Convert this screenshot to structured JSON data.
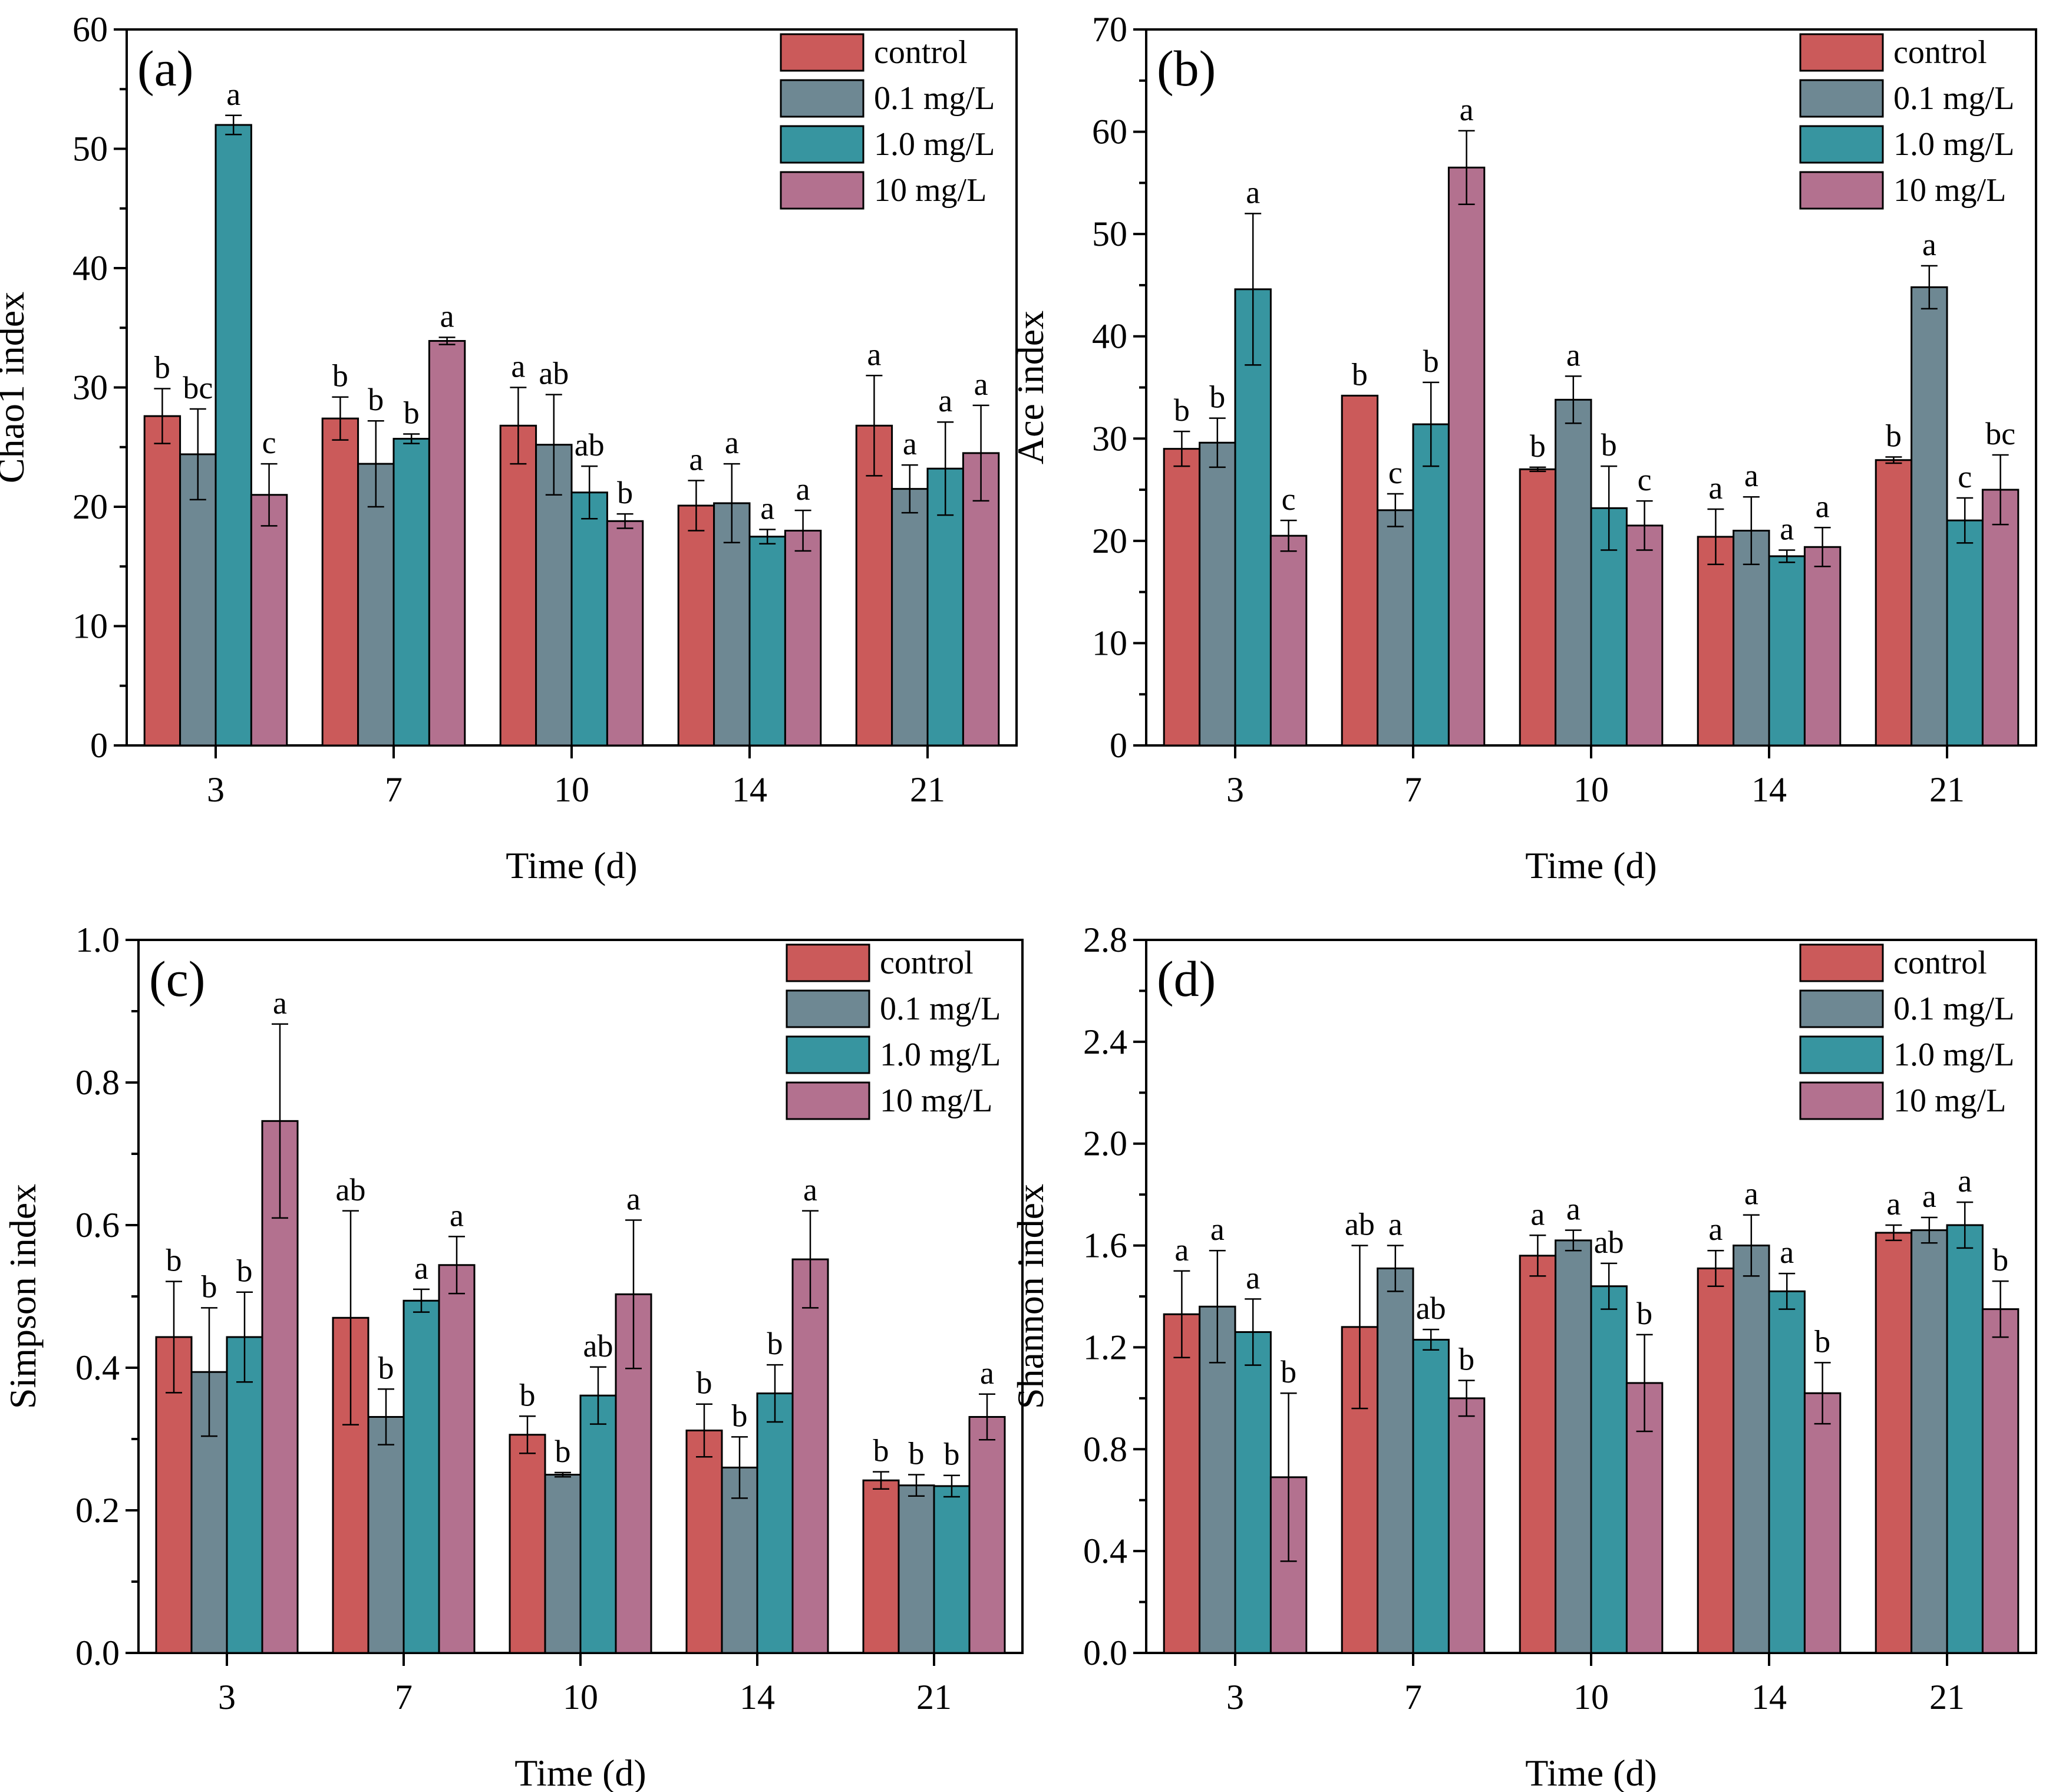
{
  "colors": {
    "control": "#CB5A5A",
    "dose_0_1": "#6E8893",
    "dose_1_0": "#3795A0",
    "dose_10": "#B3718F"
  },
  "chart_data": [
    {
      "type": "bar",
      "panel_label": "(a)",
      "xlabel": "Time (d)",
      "ylabel": "Chao1 index",
      "categories": [
        "3",
        "7",
        "10",
        "14",
        "21"
      ],
      "ylim": [
        0,
        60
      ],
      "yticks": [
        0,
        10,
        20,
        30,
        40,
        50,
        60
      ],
      "tick_decimals": 0,
      "legend_position": "top-right",
      "series": [
        {
          "name": "control",
          "values": [
            27.6,
            27.4,
            26.8,
            20.1,
            26.8
          ],
          "errors": [
            2.3,
            1.8,
            3.2,
            2.1,
            4.2
          ],
          "letters": [
            "b",
            "b",
            "a",
            "a",
            "a"
          ]
        },
        {
          "name": "0.1 mg/L",
          "values": [
            24.4,
            23.6,
            25.2,
            20.3,
            21.5
          ],
          "errors": [
            3.8,
            3.6,
            4.2,
            3.3,
            2.0
          ],
          "letters": [
            "bc",
            "b",
            "ab",
            "a",
            "a"
          ]
        },
        {
          "name": "1.0 mg/L",
          "values": [
            52.0,
            25.7,
            21.2,
            17.5,
            23.2
          ],
          "errors": [
            0.8,
            0.4,
            2.2,
            0.6,
            3.9
          ],
          "letters": [
            "a",
            "b",
            "ab",
            "a",
            "a"
          ]
        },
        {
          "name": "10 mg/L",
          "values": [
            21.0,
            33.9,
            18.8,
            18.0,
            24.5
          ],
          "errors": [
            2.6,
            0.3,
            0.6,
            1.7,
            4.0
          ],
          "letters": [
            "c",
            "a",
            "b",
            "a",
            "a"
          ]
        }
      ]
    },
    {
      "type": "bar",
      "panel_label": "(b)",
      "xlabel": "Time (d)",
      "ylabel": "Ace index",
      "categories": [
        "3",
        "7",
        "10",
        "14",
        "21"
      ],
      "ylim": [
        0,
        70
      ],
      "yticks": [
        0,
        10,
        20,
        30,
        40,
        50,
        60,
        70
      ],
      "tick_decimals": 0,
      "legend_position": "top-right",
      "series": [
        {
          "name": "control",
          "values": [
            29.0,
            34.2,
            27.0,
            20.4,
            27.9
          ],
          "errors": [
            1.7,
            0,
            0.2,
            2.7,
            0.3
          ],
          "letters": [
            "b",
            "b",
            "b",
            "a",
            "b"
          ]
        },
        {
          "name": "0.1 mg/L",
          "values": [
            29.6,
            23.0,
            33.8,
            21.0,
            44.8
          ],
          "errors": [
            2.4,
            1.6,
            2.3,
            3.3,
            2.1
          ],
          "letters": [
            "b",
            "c",
            "a",
            "a",
            "a"
          ]
        },
        {
          "name": "1.0 mg/L",
          "values": [
            44.6,
            31.4,
            23.2,
            18.5,
            22.0
          ],
          "errors": [
            7.4,
            4.1,
            4.1,
            0.6,
            2.2
          ],
          "letters": [
            "a",
            "b",
            "b",
            "a",
            "c"
          ]
        },
        {
          "name": "10 mg/L",
          "values": [
            20.5,
            56.5,
            21.5,
            19.4,
            25.0
          ],
          "errors": [
            1.5,
            3.6,
            2.4,
            1.9,
            3.4
          ],
          "letters": [
            "c",
            "a",
            "c",
            "a",
            "bc"
          ]
        }
      ]
    },
    {
      "type": "bar",
      "panel_label": "(c)",
      "xlabel": "Time (d)",
      "ylabel": "Simpson index",
      "categories": [
        "3",
        "7",
        "10",
        "14",
        "21"
      ],
      "ylim": [
        0,
        1.0
      ],
      "yticks": [
        0,
        0.2,
        0.4,
        0.6,
        0.8,
        1.0
      ],
      "tick_decimals": 1,
      "legend_position": "top-right",
      "series": [
        {
          "name": "control",
          "values": [
            0.443,
            0.47,
            0.306,
            0.312,
            0.242
          ],
          "errors": [
            0.078,
            0.15,
            0.026,
            0.037,
            0.012
          ],
          "letters": [
            "b",
            "ab",
            "b",
            "b",
            "b"
          ]
        },
        {
          "name": "0.1 mg/L",
          "values": [
            0.394,
            0.331,
            0.25,
            0.26,
            0.235
          ],
          "errors": [
            0.09,
            0.039,
            0.003,
            0.043,
            0.015
          ],
          "letters": [
            "b",
            "b",
            "b",
            "b",
            "b"
          ]
        },
        {
          "name": "1.0 mg/L",
          "values": [
            0.443,
            0.494,
            0.361,
            0.364,
            0.234
          ],
          "errors": [
            0.063,
            0.016,
            0.04,
            0.04,
            0.015
          ],
          "letters": [
            "b",
            "a",
            "ab",
            "b",
            "b"
          ]
        },
        {
          "name": "10 mg/L",
          "values": [
            0.746,
            0.544,
            0.503,
            0.552,
            0.331
          ],
          "errors": [
            0.136,
            0.04,
            0.104,
            0.068,
            0.032
          ],
          "letters": [
            "a",
            "a",
            "a",
            "a",
            "a"
          ]
        }
      ]
    },
    {
      "type": "bar",
      "panel_label": "(d)",
      "xlabel": "Time (d)",
      "ylabel": "Shannon index",
      "categories": [
        "3",
        "7",
        "10",
        "14",
        "21"
      ],
      "ylim": [
        0,
        2.8
      ],
      "yticks": [
        0,
        0.4,
        0.8,
        1.2,
        1.6,
        2.0,
        2.4,
        2.8
      ],
      "tick_decimals": 1,
      "legend_position": "top-right",
      "series": [
        {
          "name": "control",
          "values": [
            1.33,
            1.28,
            1.56,
            1.51,
            1.65
          ],
          "errors": [
            0.17,
            0.32,
            0.08,
            0.07,
            0.03
          ],
          "letters": [
            "a",
            "ab",
            "a",
            "a",
            "a"
          ]
        },
        {
          "name": "0.1 mg/L",
          "values": [
            1.36,
            1.51,
            1.62,
            1.6,
            1.66
          ],
          "errors": [
            0.22,
            0.09,
            0.04,
            0.12,
            0.05
          ],
          "letters": [
            "a",
            "a",
            "a",
            "a",
            "a"
          ]
        },
        {
          "name": "1.0 mg/L",
          "values": [
            1.26,
            1.23,
            1.44,
            1.42,
            1.68
          ],
          "errors": [
            0.13,
            0.04,
            0.09,
            0.07,
            0.09
          ],
          "letters": [
            "a",
            "ab",
            "ab",
            "a",
            "a"
          ]
        },
        {
          "name": "10 mg/L",
          "values": [
            0.69,
            1.0,
            1.06,
            1.02,
            1.35
          ],
          "errors": [
            0.33,
            0.07,
            0.19,
            0.12,
            0.11
          ],
          "letters": [
            "b",
            "b",
            "b",
            "b",
            "b"
          ]
        }
      ]
    }
  ]
}
